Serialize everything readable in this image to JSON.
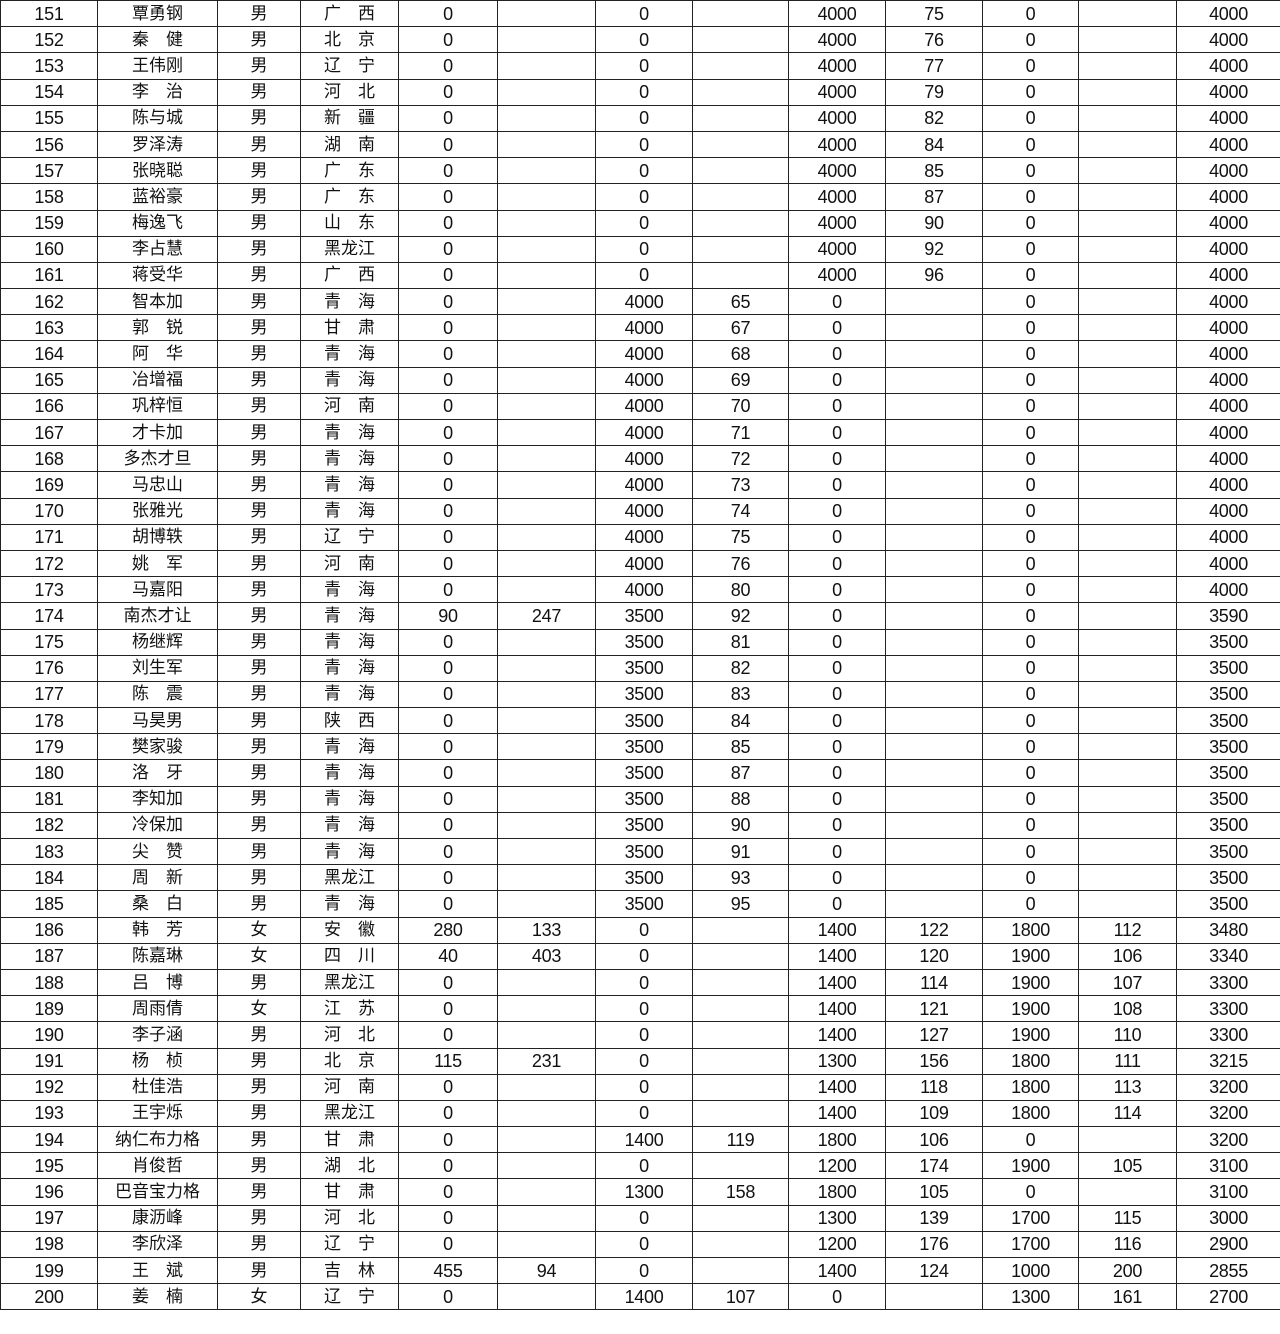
{
  "table": {
    "rows": [
      [
        "151",
        "覃勇钢",
        "男",
        "广　西",
        "0",
        "",
        "0",
        "",
        "4000",
        "75",
        "0",
        "",
        "4000"
      ],
      [
        "152",
        "秦　健",
        "男",
        "北　京",
        "0",
        "",
        "0",
        "",
        "4000",
        "76",
        "0",
        "",
        "4000"
      ],
      [
        "153",
        "王伟刚",
        "男",
        "辽　宁",
        "0",
        "",
        "0",
        "",
        "4000",
        "77",
        "0",
        "",
        "4000"
      ],
      [
        "154",
        "李　治",
        "男",
        "河　北",
        "0",
        "",
        "0",
        "",
        "4000",
        "79",
        "0",
        "",
        "4000"
      ],
      [
        "155",
        "陈与城",
        "男",
        "新　疆",
        "0",
        "",
        "0",
        "",
        "4000",
        "82",
        "0",
        "",
        "4000"
      ],
      [
        "156",
        "罗泽涛",
        "男",
        "湖　南",
        "0",
        "",
        "0",
        "",
        "4000",
        "84",
        "0",
        "",
        "4000"
      ],
      [
        "157",
        "张晓聪",
        "男",
        "广　东",
        "0",
        "",
        "0",
        "",
        "4000",
        "85",
        "0",
        "",
        "4000"
      ],
      [
        "158",
        "蓝裕豪",
        "男",
        "广　东",
        "0",
        "",
        "0",
        "",
        "4000",
        "87",
        "0",
        "",
        "4000"
      ],
      [
        "159",
        "梅逸飞",
        "男",
        "山　东",
        "0",
        "",
        "0",
        "",
        "4000",
        "90",
        "0",
        "",
        "4000"
      ],
      [
        "160",
        "李占慧",
        "男",
        "黑龙江",
        "0",
        "",
        "0",
        "",
        "4000",
        "92",
        "0",
        "",
        "4000"
      ],
      [
        "161",
        "蒋受华",
        "男",
        "广　西",
        "0",
        "",
        "0",
        "",
        "4000",
        "96",
        "0",
        "",
        "4000"
      ],
      [
        "162",
        "智本加",
        "男",
        "青　海",
        "0",
        "",
        "4000",
        "65",
        "0",
        "",
        "0",
        "",
        "4000"
      ],
      [
        "163",
        "郭　锐",
        "男",
        "甘　肃",
        "0",
        "",
        "4000",
        "67",
        "0",
        "",
        "0",
        "",
        "4000"
      ],
      [
        "164",
        "阿　华",
        "男",
        "青　海",
        "0",
        "",
        "4000",
        "68",
        "0",
        "",
        "0",
        "",
        "4000"
      ],
      [
        "165",
        "冶增福",
        "男",
        "青　海",
        "0",
        "",
        "4000",
        "69",
        "0",
        "",
        "0",
        "",
        "4000"
      ],
      [
        "166",
        "巩梓恒",
        "男",
        "河　南",
        "0",
        "",
        "4000",
        "70",
        "0",
        "",
        "0",
        "",
        "4000"
      ],
      [
        "167",
        "才卡加",
        "男",
        "青　海",
        "0",
        "",
        "4000",
        "71",
        "0",
        "",
        "0",
        "",
        "4000"
      ],
      [
        "168",
        "多杰才旦",
        "男",
        "青　海",
        "0",
        "",
        "4000",
        "72",
        "0",
        "",
        "0",
        "",
        "4000"
      ],
      [
        "169",
        "马忠山",
        "男",
        "青　海",
        "0",
        "",
        "4000",
        "73",
        "0",
        "",
        "0",
        "",
        "4000"
      ],
      [
        "170",
        "张雅光",
        "男",
        "青　海",
        "0",
        "",
        "4000",
        "74",
        "0",
        "",
        "0",
        "",
        "4000"
      ],
      [
        "171",
        "胡博轶",
        "男",
        "辽　宁",
        "0",
        "",
        "4000",
        "75",
        "0",
        "",
        "0",
        "",
        "4000"
      ],
      [
        "172",
        "姚　军",
        "男",
        "河　南",
        "0",
        "",
        "4000",
        "76",
        "0",
        "",
        "0",
        "",
        "4000"
      ],
      [
        "173",
        "马嘉阳",
        "男",
        "青　海",
        "0",
        "",
        "4000",
        "80",
        "0",
        "",
        "0",
        "",
        "4000"
      ],
      [
        "174",
        "南杰才让",
        "男",
        "青　海",
        "90",
        "247",
        "3500",
        "92",
        "0",
        "",
        "0",
        "",
        "3590"
      ],
      [
        "175",
        "杨继辉",
        "男",
        "青　海",
        "0",
        "",
        "3500",
        "81",
        "0",
        "",
        "0",
        "",
        "3500"
      ],
      [
        "176",
        "刘生军",
        "男",
        "青　海",
        "0",
        "",
        "3500",
        "82",
        "0",
        "",
        "0",
        "",
        "3500"
      ],
      [
        "177",
        "陈　震",
        "男",
        "青　海",
        "0",
        "",
        "3500",
        "83",
        "0",
        "",
        "0",
        "",
        "3500"
      ],
      [
        "178",
        "马昊男",
        "男",
        "陕　西",
        "0",
        "",
        "3500",
        "84",
        "0",
        "",
        "0",
        "",
        "3500"
      ],
      [
        "179",
        "樊家骏",
        "男",
        "青　海",
        "0",
        "",
        "3500",
        "85",
        "0",
        "",
        "0",
        "",
        "3500"
      ],
      [
        "180",
        "洛　牙",
        "男",
        "青　海",
        "0",
        "",
        "3500",
        "87",
        "0",
        "",
        "0",
        "",
        "3500"
      ],
      [
        "181",
        "李知加",
        "男",
        "青　海",
        "0",
        "",
        "3500",
        "88",
        "0",
        "",
        "0",
        "",
        "3500"
      ],
      [
        "182",
        "冷保加",
        "男",
        "青　海",
        "0",
        "",
        "3500",
        "90",
        "0",
        "",
        "0",
        "",
        "3500"
      ],
      [
        "183",
        "尖　赞",
        "男",
        "青　海",
        "0",
        "",
        "3500",
        "91",
        "0",
        "",
        "0",
        "",
        "3500"
      ],
      [
        "184",
        "周　新",
        "男",
        "黑龙江",
        "0",
        "",
        "3500",
        "93",
        "0",
        "",
        "0",
        "",
        "3500"
      ],
      [
        "185",
        "桑　白",
        "男",
        "青　海",
        "0",
        "",
        "3500",
        "95",
        "0",
        "",
        "0",
        "",
        "3500"
      ],
      [
        "186",
        "韩　芳",
        "女",
        "安　徽",
        "280",
        "133",
        "0",
        "",
        "1400",
        "122",
        "1800",
        "112",
        "3480"
      ],
      [
        "187",
        "陈嘉琳",
        "女",
        "四　川",
        "40",
        "403",
        "0",
        "",
        "1400",
        "120",
        "1900",
        "106",
        "3340"
      ],
      [
        "188",
        "吕　博",
        "男",
        "黑龙江",
        "0",
        "",
        "0",
        "",
        "1400",
        "114",
        "1900",
        "107",
        "3300"
      ],
      [
        "189",
        "周雨倩",
        "女",
        "江　苏",
        "0",
        "",
        "0",
        "",
        "1400",
        "121",
        "1900",
        "108",
        "3300"
      ],
      [
        "190",
        "李子涵",
        "男",
        "河　北",
        "0",
        "",
        "0",
        "",
        "1400",
        "127",
        "1900",
        "110",
        "3300"
      ],
      [
        "191",
        "杨　桢",
        "男",
        "北　京",
        "115",
        "231",
        "0",
        "",
        "1300",
        "156",
        "1800",
        "111",
        "3215"
      ],
      [
        "192",
        "杜佳浩",
        "男",
        "河　南",
        "0",
        "",
        "0",
        "",
        "1400",
        "118",
        "1800",
        "113",
        "3200"
      ],
      [
        "193",
        "王宇烁",
        "男",
        "黑龙江",
        "0",
        "",
        "0",
        "",
        "1400",
        "109",
        "1800",
        "114",
        "3200"
      ],
      [
        "194",
        "纳仁布力格",
        "男",
        "甘　肃",
        "0",
        "",
        "1400",
        "119",
        "1800",
        "106",
        "0",
        "",
        "3200"
      ],
      [
        "195",
        "肖俊哲",
        "男",
        "湖　北",
        "0",
        "",
        "0",
        "",
        "1200",
        "174",
        "1900",
        "105",
        "3100"
      ],
      [
        "196",
        "巴音宝力格",
        "男",
        "甘　肃",
        "0",
        "",
        "1300",
        "158",
        "1800",
        "105",
        "0",
        "",
        "3100"
      ],
      [
        "197",
        "康沥峰",
        "男",
        "河　北",
        "0",
        "",
        "0",
        "",
        "1300",
        "139",
        "1700",
        "115",
        "3000"
      ],
      [
        "198",
        "李欣泽",
        "男",
        "辽　宁",
        "0",
        "",
        "0",
        "",
        "1200",
        "176",
        "1700",
        "116",
        "2900"
      ],
      [
        "199",
        "王　斌",
        "男",
        "吉　林",
        "455",
        "94",
        "0",
        "",
        "1400",
        "124",
        "1000",
        "200",
        "2855"
      ],
      [
        "200",
        "姜　楠",
        "女",
        "辽　宁",
        "0",
        "",
        "1400",
        "107",
        "0",
        "",
        "1300",
        "161",
        "2700"
      ]
    ]
  }
}
